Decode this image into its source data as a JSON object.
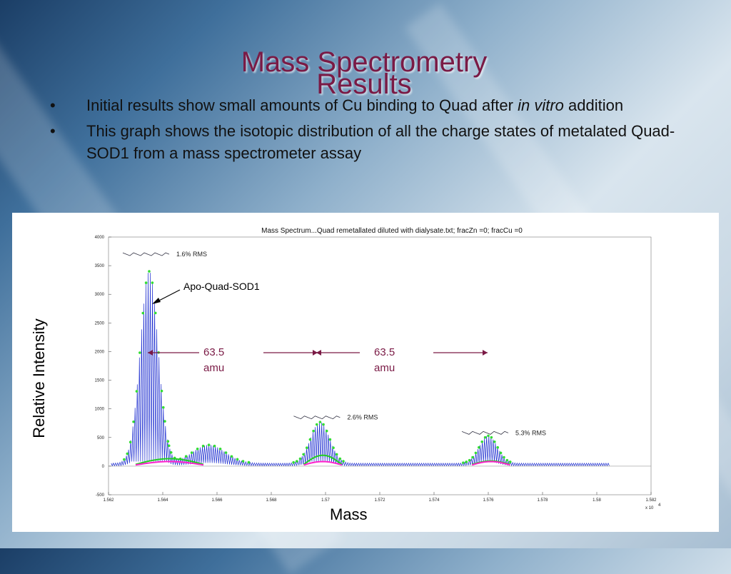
{
  "slide": {
    "title_lines": [
      "Mass Spectrometry",
      "Results"
    ],
    "bullets": [
      {
        "text_before": "Initial results show small amounts of Cu binding to Quad after ",
        "text_italic": "in vitro",
        "text_after": " addition"
      },
      {
        "text_before": "This graph shows the isotopic distribution of all the charge states of metalated Quad-SOD1 from a mass spectrometer assay",
        "text_italic": "",
        "text_after": ""
      }
    ],
    "bullet_glyph": "•",
    "bg_colors": {
      "title": "#7a1a45",
      "arrow": "#7a1a45",
      "annotation": "#7a1a45"
    }
  },
  "chart_data": {
    "type": "line",
    "title": "Mass Spectrum...Quad remetallated diluted with dialysate.txt; fracZn =0; fracCu =0",
    "xlabel": "Mass",
    "ylabel": "Relative Intensity",
    "x_multiplier_label": "x 10",
    "x_multiplier_exp": "4",
    "xlim": [
      1.562,
      1.582
    ],
    "ylim": [
      -500,
      4000
    ],
    "xticks": [
      "1.562",
      "1.564",
      "1.566",
      "1.568",
      "1.57",
      "1.572",
      "1.574",
      "1.576",
      "1.578",
      "1.58",
      "1.582"
    ],
    "xtick_values": [
      1.562,
      1.564,
      1.566,
      1.568,
      1.57,
      1.572,
      1.574,
      1.576,
      1.578,
      1.58,
      1.582
    ],
    "yticks": [
      "-500",
      "0",
      "500",
      "1000",
      "1500",
      "2000",
      "2500",
      "3000",
      "3500",
      "4000"
    ],
    "ytick_values": [
      -500,
      0,
      500,
      1000,
      1500,
      2000,
      2500,
      3000,
      3500,
      4000
    ],
    "series": [
      {
        "name": "",
        "color": "#1f2fd0",
        "peaks": [
          {
            "center": 1.5635,
            "height": 3350,
            "width": 0.00033
          },
          {
            "center": 1.5657,
            "height": 320,
            "width": 0.0006
          },
          {
            "center": 1.5698,
            "height": 720,
            "width": 0.00035
          },
          {
            "center": 1.576,
            "height": 480,
            "width": 0.00033
          }
        ],
        "baseline": 50
      }
    ],
    "rms_labels": [
      {
        "text": "1.6% RMS",
        "x": 1.5645,
        "y": 3700
      },
      {
        "text": "2.6% RMS",
        "x": 1.5708,
        "y": 850
      },
      {
        "text": "5.3% RMS",
        "x": 1.577,
        "y": 580
      }
    ],
    "annotations": {
      "apo": "Apo-Quad-SOD1",
      "shift_value": "63.5",
      "shift_unit": "amu"
    },
    "colors": {
      "fit_green": "#22cc22",
      "fit_magenta": "#ff22cc",
      "main": "#1f2fd0"
    }
  }
}
